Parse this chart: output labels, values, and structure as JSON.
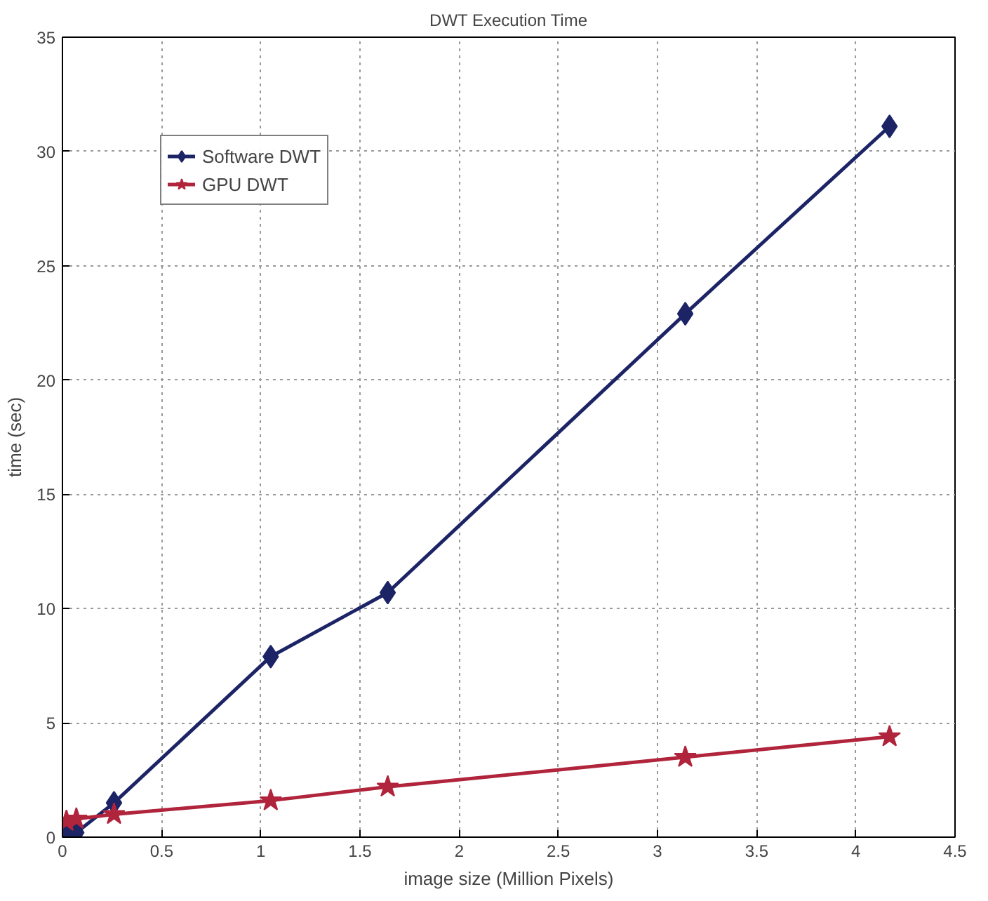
{
  "chart_data": {
    "type": "line",
    "title": "DWT Execution Time",
    "xlabel": "image size (Million Pixels)",
    "ylabel": "time (sec)",
    "xlim": [
      0,
      4.5
    ],
    "ylim": [
      0,
      35
    ],
    "xticks": [
      0,
      0.5,
      1,
      1.5,
      2,
      2.5,
      3,
      3.5,
      4,
      4.5
    ],
    "yticks": [
      0,
      5,
      10,
      15,
      20,
      25,
      30,
      35
    ],
    "grid": true,
    "legend": "top left",
    "line_style": "solid",
    "series": [
      {
        "name": "Software DWT",
        "color": "#1c2466",
        "marker": "diamond",
        "x": [
          0.02,
          0.07,
          0.26,
          1.05,
          1.64,
          3.14,
          4.17
        ],
        "values": [
          0.05,
          0.2,
          1.5,
          7.9,
          10.7,
          22.9,
          31.1
        ]
      },
      {
        "name": "GPU DWT",
        "color": "#b0243c",
        "marker": "star",
        "x": [
          0.02,
          0.07,
          0.26,
          1.05,
          1.64,
          3.14,
          4.17
        ],
        "values": [
          0.7,
          0.8,
          1.0,
          1.6,
          2.2,
          3.5,
          4.4
        ]
      }
    ]
  }
}
